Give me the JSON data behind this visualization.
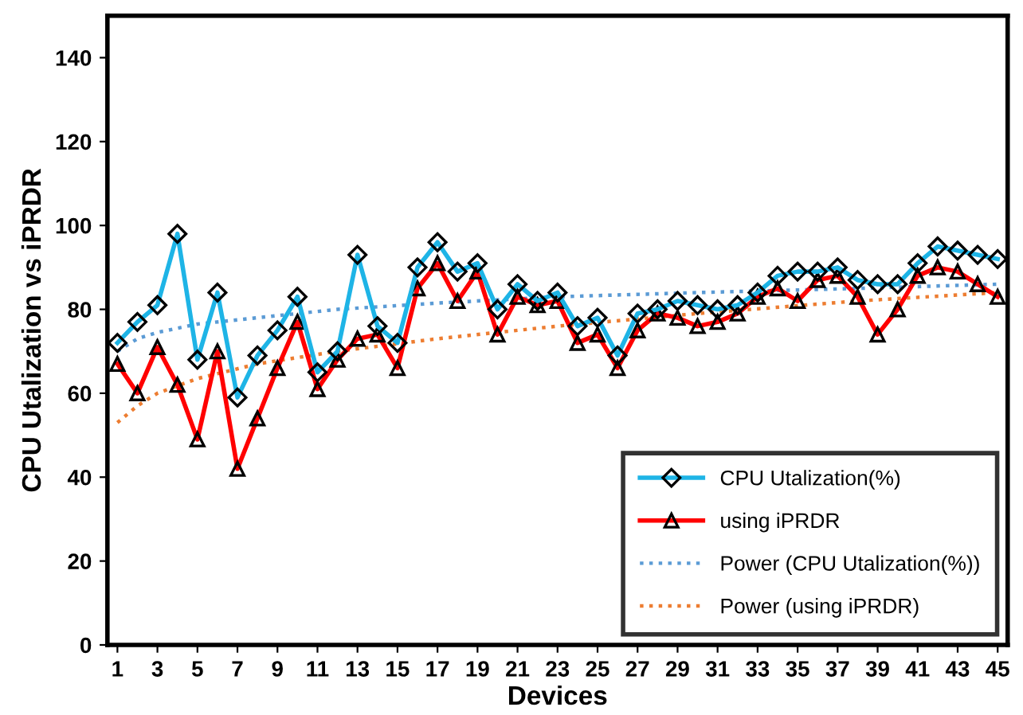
{
  "chart_data": {
    "type": "line",
    "xlabel": "Devices",
    "ylabel": "CPU Utalization vs iPRDR",
    "xlim": [
      0.5,
      45.5
    ],
    "xticks": [
      1,
      3,
      5,
      7,
      9,
      11,
      13,
      15,
      17,
      19,
      21,
      23,
      25,
      27,
      29,
      31,
      33,
      35,
      37,
      39,
      41,
      43,
      45
    ],
    "ylim": [
      0,
      150
    ],
    "yticks": [
      0,
      20,
      40,
      60,
      80,
      100,
      120,
      140
    ],
    "grid": false,
    "legend": "bottom right",
    "series": [
      {
        "name": "CPU Utalization(%)",
        "color": "#1eb4e6",
        "marker": "diamond",
        "line_style": "solid",
        "x": [
          1,
          2,
          3,
          4,
          5,
          6,
          7,
          8,
          9,
          10,
          11,
          12,
          13,
          14,
          15,
          16,
          17,
          18,
          19,
          20,
          21,
          22,
          23,
          24,
          25,
          26,
          27,
          28,
          29,
          30,
          31,
          32,
          33,
          34,
          35,
          36,
          37,
          38,
          39,
          40,
          41,
          42,
          43,
          44,
          45
        ],
        "values": [
          72,
          77,
          81,
          98,
          68,
          84,
          59,
          69,
          75,
          83,
          65,
          70,
          93,
          76,
          72,
          90,
          96,
          89,
          91,
          80,
          86,
          82,
          84,
          76,
          78,
          69,
          79,
          80,
          82,
          81,
          80,
          81,
          84,
          88,
          89,
          89,
          90,
          87,
          86,
          86,
          91,
          95,
          94,
          93,
          92
        ]
      },
      {
        "name": "using iPRDR",
        "color": "#ff0000",
        "marker": "triangle",
        "line_style": "solid",
        "x": [
          1,
          2,
          3,
          4,
          5,
          6,
          7,
          8,
          9,
          10,
          11,
          12,
          13,
          14,
          15,
          16,
          17,
          18,
          19,
          20,
          21,
          22,
          23,
          24,
          25,
          26,
          27,
          28,
          29,
          30,
          31,
          32,
          33,
          34,
          35,
          36,
          37,
          38,
          39,
          40,
          41,
          42,
          43,
          44,
          45
        ],
        "values": [
          67,
          60,
          71,
          62,
          49,
          70,
          42,
          54,
          66,
          77,
          61,
          68,
          73,
          74,
          66,
          85,
          91,
          82,
          89,
          74,
          83,
          81,
          82,
          72,
          74,
          66,
          75,
          79,
          78,
          76,
          77,
          79,
          83,
          85,
          82,
          87,
          88,
          83,
          74,
          80,
          88,
          90,
          89,
          86,
          83
        ]
      },
      {
        "name": "Power (CPU Utalization(%))",
        "color": "#5b9bd5",
        "marker": "none",
        "line_style": "dotted",
        "x": [
          1,
          2,
          3,
          5,
          8,
          12,
          17,
          23,
          30,
          38,
          45
        ],
        "values": [
          70,
          73,
          74.5,
          76.5,
          78,
          80,
          81.5,
          83,
          84,
          85,
          86
        ]
      },
      {
        "name": "Power (using iPRDR)",
        "color": "#ed7d31",
        "marker": "none",
        "line_style": "dotted",
        "x": [
          1,
          2,
          3,
          5,
          8,
          12,
          17,
          23,
          30,
          38,
          45
        ],
        "values": [
          53,
          57,
          60,
          63.5,
          67,
          70,
          73,
          76,
          79,
          82,
          84
        ]
      }
    ]
  }
}
